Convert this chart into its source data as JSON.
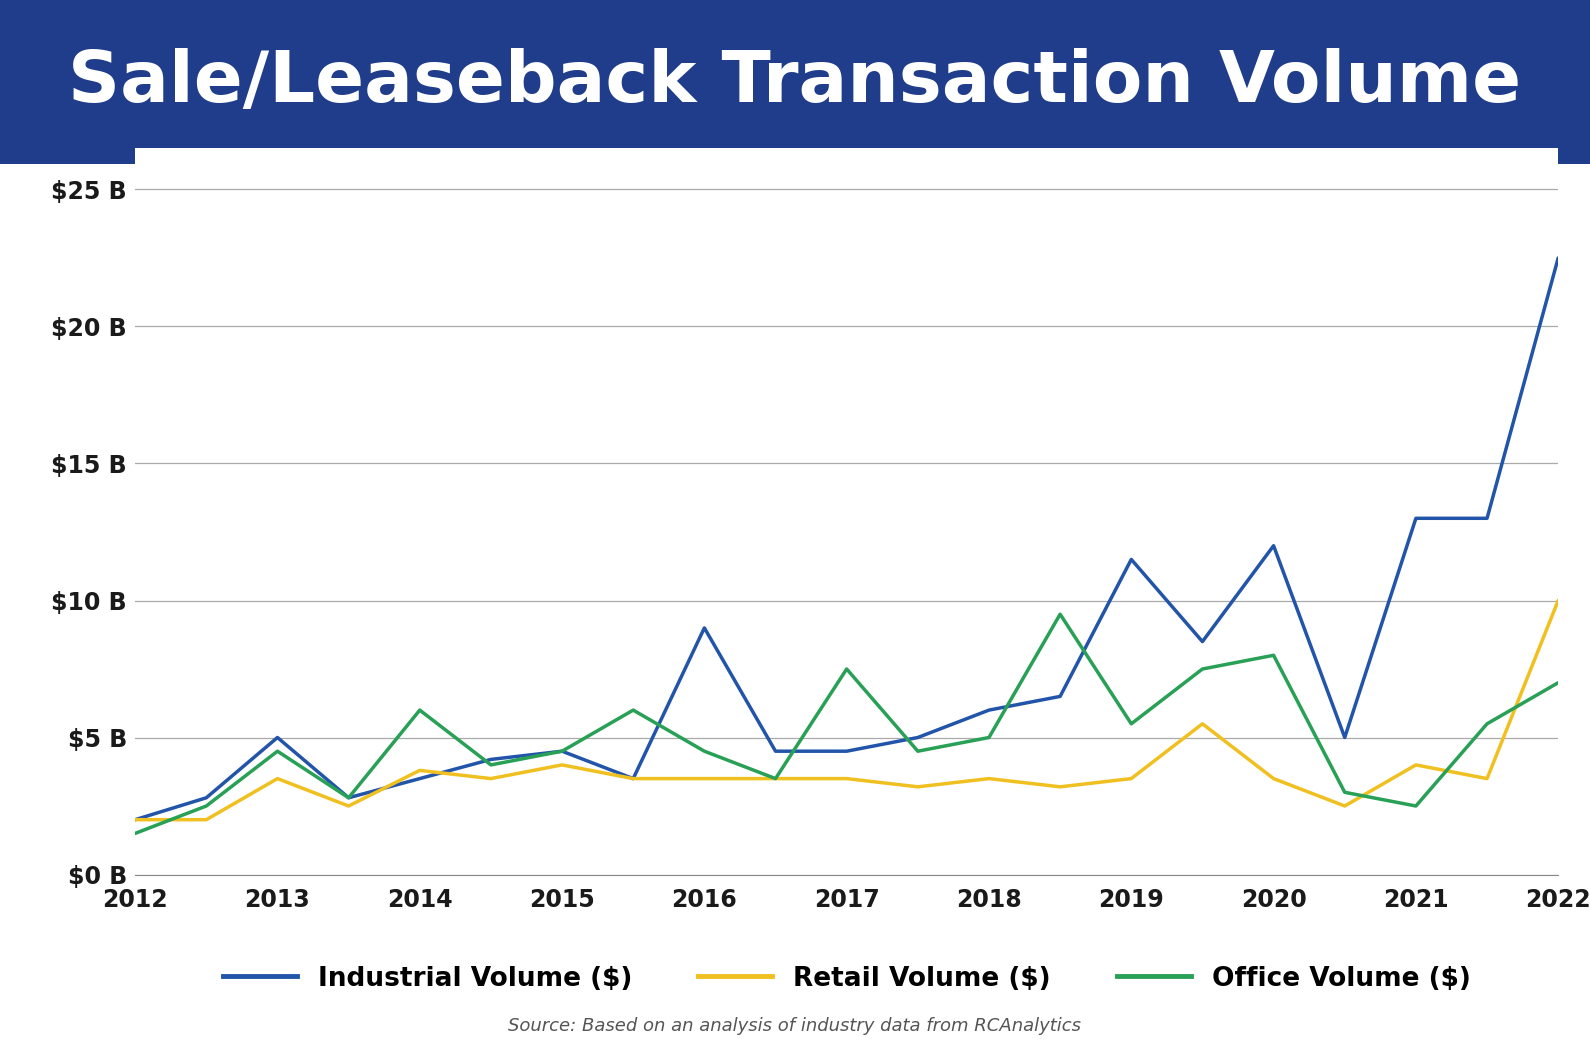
{
  "title": "Sale/Leaseback Transaction Volume",
  "title_bg_color": "#1f3d8a",
  "title_text_color": "#ffffff",
  "bg_color": "#ffffff",
  "source_text": "Source: Based on an analysis of industry data from RCAnalytics",
  "x_labels": [
    "2012",
    "2013",
    "2014",
    "2015",
    "2016",
    "2017",
    "2018",
    "2019",
    "2020",
    "2021",
    "2022"
  ],
  "ytick_labels": [
    "$0 B",
    "$5 B",
    "$10 B",
    "$15 B",
    "$20 B",
    "$25 B"
  ],
  "ytick_values": [
    0,
    5,
    10,
    15,
    20,
    25
  ],
  "ylim": [
    0,
    26.5
  ],
  "xlim": [
    2012,
    2022
  ],
  "x_tick_positions": [
    2012,
    2013,
    2014,
    2015,
    2016,
    2017,
    2018,
    2019,
    2020,
    2021,
    2022
  ],
  "industrial_x": [
    2012.0,
    2012.5,
    2013.0,
    2013.5,
    2014.0,
    2014.5,
    2015.0,
    2015.5,
    2016.0,
    2016.5,
    2017.0,
    2017.5,
    2018.0,
    2018.5,
    2019.0,
    2019.5,
    2020.0,
    2020.5,
    2021.0,
    2021.5,
    2022.0
  ],
  "industrial_y": [
    2.0,
    2.8,
    5.0,
    2.8,
    3.5,
    4.2,
    4.5,
    3.5,
    9.0,
    4.5,
    4.5,
    5.0,
    6.0,
    6.5,
    11.5,
    8.5,
    12.0,
    5.0,
    13.0,
    13.0,
    22.5
  ],
  "retail_x": [
    2012.0,
    2012.5,
    2013.0,
    2013.5,
    2014.0,
    2014.5,
    2015.0,
    2015.5,
    2016.0,
    2016.5,
    2017.0,
    2017.5,
    2018.0,
    2018.5,
    2019.0,
    2019.5,
    2020.0,
    2020.5,
    2021.0,
    2021.5,
    2022.0
  ],
  "retail_y": [
    2.0,
    2.0,
    3.5,
    2.5,
    3.8,
    3.5,
    4.0,
    3.5,
    3.5,
    3.5,
    3.5,
    3.2,
    3.5,
    3.2,
    3.5,
    5.5,
    3.5,
    2.5,
    4.0,
    3.5,
    10.0
  ],
  "office_x": [
    2012.0,
    2012.5,
    2013.0,
    2013.5,
    2014.0,
    2014.5,
    2015.0,
    2015.5,
    2016.0,
    2016.5,
    2017.0,
    2017.5,
    2018.0,
    2018.5,
    2019.0,
    2019.5,
    2020.0,
    2020.5,
    2021.0,
    2021.5,
    2022.0
  ],
  "office_y": [
    1.5,
    2.5,
    4.5,
    2.8,
    6.0,
    4.0,
    4.5,
    6.0,
    4.5,
    3.5,
    7.5,
    4.5,
    5.0,
    9.5,
    5.5,
    7.5,
    8.0,
    3.0,
    2.5,
    5.5,
    7.0
  ],
  "industrial_color": "#2255aa",
  "retail_color": "#f0c020",
  "office_color": "#28a055",
  "linewidth": 2.5,
  "title_fontsize": 52,
  "tick_fontsize": 17,
  "legend_fontsize": 19,
  "source_fontsize": 13
}
